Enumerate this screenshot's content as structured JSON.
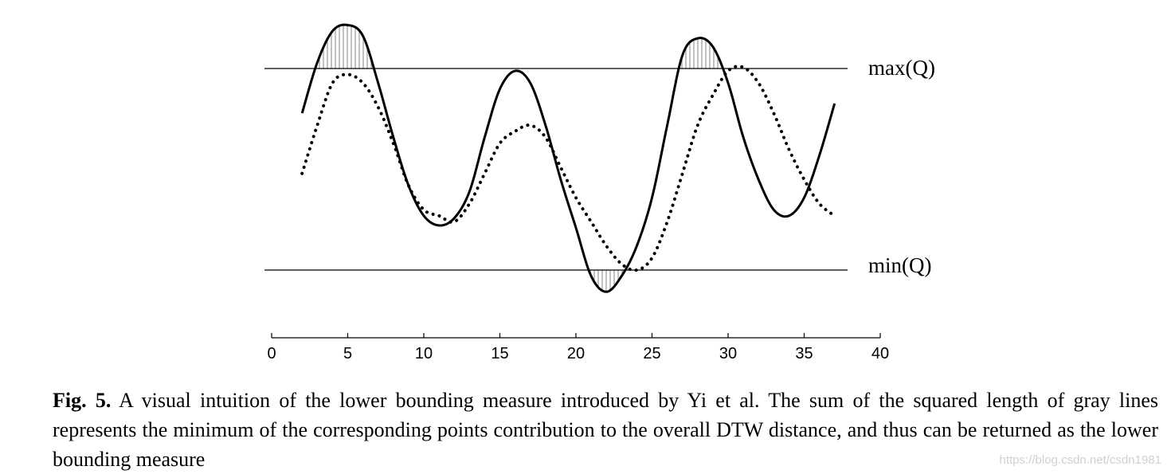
{
  "chart_data": {
    "type": "line",
    "x_ticks": [
      0,
      5,
      10,
      15,
      20,
      25,
      30,
      35,
      40
    ],
    "xlim": [
      0,
      40
    ],
    "ylim": [
      -1.2,
      1.2
    ],
    "bounds": {
      "max": {
        "label": "max(Q)",
        "value": 0.67
      },
      "min": {
        "label": "min(Q)",
        "value": -1.0
      }
    },
    "series": [
      {
        "style": "solid",
        "x": [
          2,
          3,
          4,
          5,
          6,
          7,
          8,
          9,
          10,
          11,
          12,
          13,
          14,
          15,
          16,
          17,
          18,
          19,
          20,
          21,
          22,
          23,
          24,
          25,
          26,
          27,
          28,
          29,
          30,
          31,
          32,
          33,
          34,
          35,
          36,
          37
        ],
        "y": [
          0.3,
          0.72,
          0.98,
          1.03,
          0.94,
          0.55,
          0.1,
          -0.3,
          -0.55,
          -0.63,
          -0.57,
          -0.35,
          0.1,
          0.5,
          0.65,
          0.55,
          0.2,
          -0.25,
          -0.65,
          -1.05,
          -1.18,
          -1.05,
          -0.8,
          -0.4,
          0.2,
          0.78,
          0.92,
          0.85,
          0.55,
          0.1,
          -0.25,
          -0.5,
          -0.55,
          -0.4,
          -0.05,
          0.38
        ]
      },
      {
        "style": "dotted",
        "x": [
          2,
          3,
          4,
          5,
          6,
          7,
          8,
          9,
          10,
          11,
          12,
          13,
          14,
          15,
          16,
          17,
          18,
          19,
          20,
          21,
          22,
          23,
          24,
          25,
          26,
          27,
          28,
          29,
          30,
          31,
          32,
          33,
          34,
          35,
          36,
          37
        ],
        "y": [
          -0.2,
          0.2,
          0.55,
          0.62,
          0.55,
          0.35,
          0.05,
          -0.3,
          -0.5,
          -0.55,
          -0.6,
          -0.45,
          -0.2,
          0.05,
          0.15,
          0.2,
          0.1,
          -0.15,
          -0.4,
          -0.6,
          -0.8,
          -0.95,
          -1.0,
          -0.9,
          -0.6,
          -0.2,
          0.2,
          0.45,
          0.65,
          0.68,
          0.55,
          0.3,
          0.0,
          -0.25,
          -0.45,
          -0.55
        ]
      }
    ]
  },
  "caption": {
    "label": "Fig. 5.",
    "text": " A visual intuition of the lower bounding measure introduced by Yi et al. The sum of the squared length of gray lines represents the minimum of the corresponding points contribution to the overall DTW distance, and thus can be returned as the lower bounding measure"
  },
  "watermark": "https://blog.csdn.net/csdn1981"
}
